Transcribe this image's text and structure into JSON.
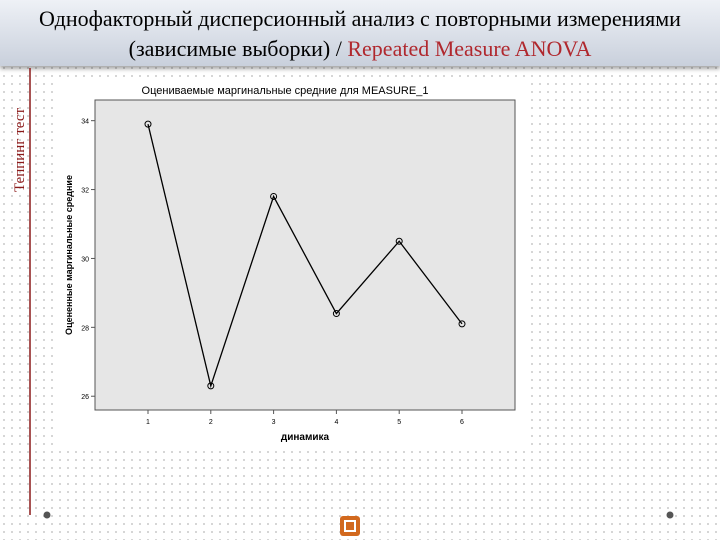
{
  "slide": {
    "title_line1": "Однофакторный дисперсионный анализ с повторными измерениями",
    "title_line2": "(зависимые выборки) / ",
    "title_line2_accent": "Repeated Measure ANOVA",
    "side_label": "Теппинг тест"
  },
  "chart_data": {
    "type": "line",
    "title": "Оцениваемые маргинальные средние для MEASURE_1",
    "x_label": "динамика",
    "y_label": "Оцененные маргинальные средние",
    "categories": [
      "1",
      "2",
      "3",
      "4",
      "5",
      "6"
    ],
    "series": [
      {
        "name": "MEASURE_1",
        "color": "#000000",
        "values": [
          33.9,
          26.3,
          31.8,
          28.4,
          30.5,
          28.1
        ]
      }
    ],
    "ylim": [
      25.6,
      34.6
    ],
    "yticks": [
      26,
      28,
      30,
      32,
      34
    ],
    "grid": false
  }
}
